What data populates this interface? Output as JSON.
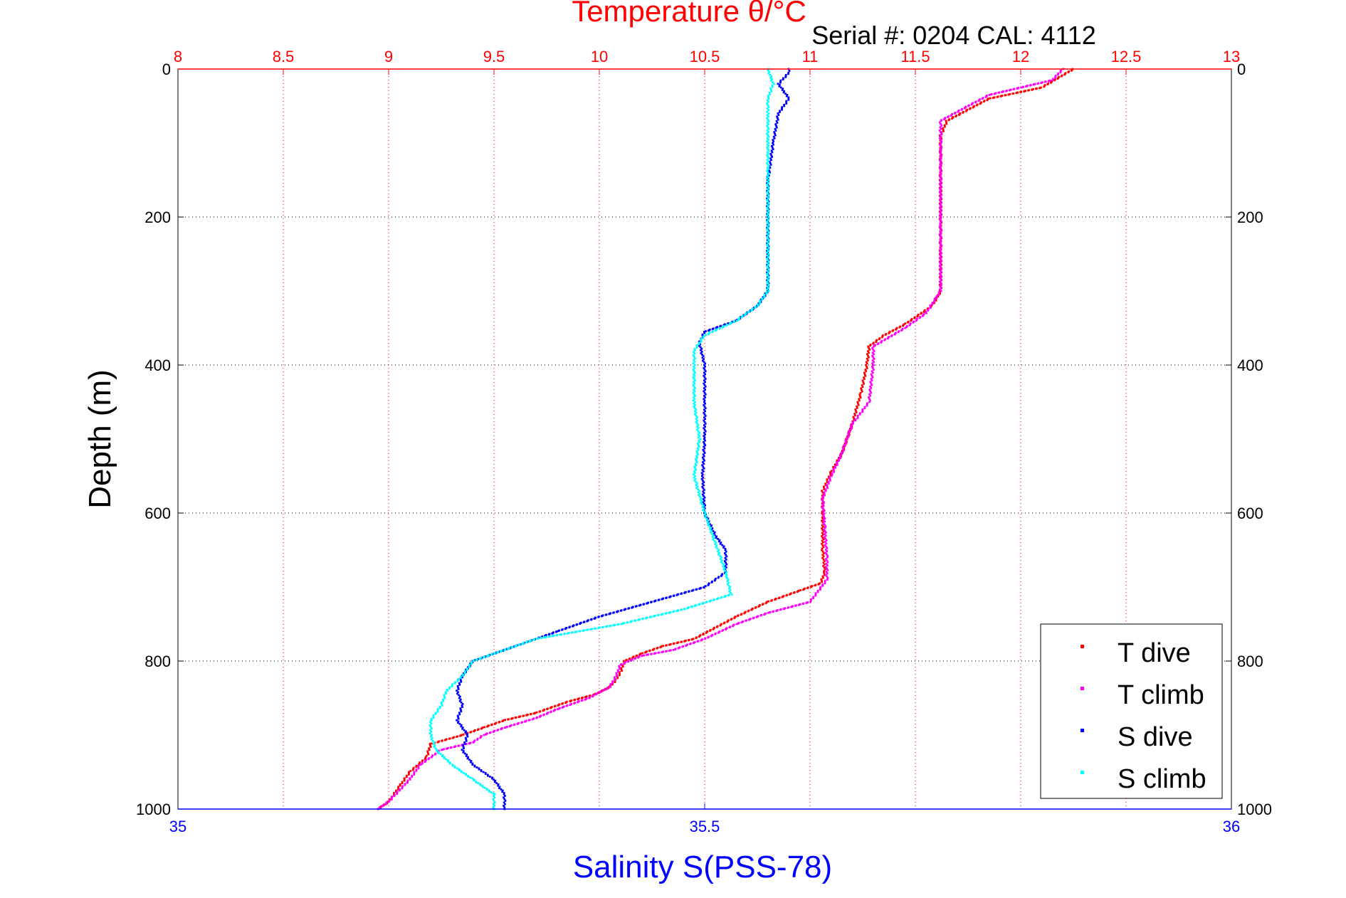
{
  "chart_data": {
    "type": "scatter",
    "title": "Temperature θ/°C",
    "subtitle": "Serial #: 0204  CAL: 4112",
    "ylabel": "Depth (m)",
    "x2label": "Salinity S(PSS-78)",
    "ylim": [
      0,
      1000
    ],
    "y_reversed": true,
    "x_top": {
      "label": "Temperature θ/°C",
      "lim": [
        8,
        13
      ],
      "ticks": [
        "8",
        "8.5",
        "9",
        "9.5",
        "10",
        "10.5",
        "11",
        "11.5",
        "12",
        "12.5",
        "13"
      ]
    },
    "x_bottom": {
      "label": "Salinity S(PSS-78)",
      "lim": [
        35,
        36
      ],
      "ticks": [
        "35",
        "35.5",
        "36"
      ]
    },
    "y_ticks": [
      "0",
      "200",
      "400",
      "600",
      "800",
      "1000"
    ],
    "grid": true,
    "legend_position": "bottom-right",
    "colors": {
      "temp_axis": "#ff0000",
      "sal_axis": "#0000ff",
      "t_dive": "#ff0000",
      "t_climb": "#ff00ff",
      "s_dive": "#0000ff",
      "s_climb": "#00ffff"
    },
    "series": [
      {
        "name": "T dive",
        "axis": "top",
        "points": [
          [
            12.25,
            0
          ],
          [
            12.1,
            25
          ],
          [
            11.85,
            40
          ],
          [
            11.75,
            55
          ],
          [
            11.65,
            70
          ],
          [
            11.62,
            90
          ],
          [
            11.62,
            150
          ],
          [
            11.62,
            250
          ],
          [
            11.62,
            300
          ],
          [
            11.58,
            320
          ],
          [
            11.45,
            345
          ],
          [
            11.35,
            360
          ],
          [
            11.28,
            375
          ],
          [
            11.27,
            400
          ],
          [
            11.24,
            440
          ],
          [
            11.2,
            480
          ],
          [
            11.15,
            520
          ],
          [
            11.1,
            545
          ],
          [
            11.06,
            570
          ],
          [
            11.06,
            600
          ],
          [
            11.06,
            650
          ],
          [
            11.07,
            680
          ],
          [
            11.05,
            695
          ],
          [
            10.95,
            705
          ],
          [
            10.8,
            720
          ],
          [
            10.65,
            740
          ],
          [
            10.55,
            755
          ],
          [
            10.45,
            770
          ],
          [
            10.3,
            780
          ],
          [
            10.2,
            790
          ],
          [
            10.12,
            800
          ],
          [
            10.1,
            815
          ],
          [
            10.08,
            825
          ],
          [
            10.05,
            835
          ],
          [
            9.98,
            845
          ],
          [
            9.85,
            855
          ],
          [
            9.7,
            870
          ],
          [
            9.55,
            880
          ],
          [
            9.45,
            890
          ],
          [
            9.35,
            900
          ],
          [
            9.2,
            912
          ],
          [
            9.18,
            930
          ],
          [
            9.1,
            950
          ],
          [
            9.05,
            970
          ],
          [
            9,
            990
          ],
          [
            8.95,
            1000
          ]
        ]
      },
      {
        "name": "T climb",
        "axis": "top",
        "points": [
          [
            12.2,
            0
          ],
          [
            12.15,
            15
          ],
          [
            12.0,
            25
          ],
          [
            11.85,
            35
          ],
          [
            11.75,
            50
          ],
          [
            11.62,
            70
          ],
          [
            11.62,
            100
          ],
          [
            11.62,
            200
          ],
          [
            11.62,
            300
          ],
          [
            11.55,
            330
          ],
          [
            11.45,
            350
          ],
          [
            11.3,
            375
          ],
          [
            11.3,
            400
          ],
          [
            11.28,
            450
          ],
          [
            11.2,
            480
          ],
          [
            11.15,
            520
          ],
          [
            11.1,
            550
          ],
          [
            11.06,
            580
          ],
          [
            11.07,
            620
          ],
          [
            11.08,
            660
          ],
          [
            11.08,
            690
          ],
          [
            11.0,
            720
          ],
          [
            10.8,
            735
          ],
          [
            10.65,
            750
          ],
          [
            10.5,
            770
          ],
          [
            10.35,
            785
          ],
          [
            10.2,
            793
          ],
          [
            10.1,
            805
          ],
          [
            10.08,
            820
          ],
          [
            10.05,
            835
          ],
          [
            9.95,
            850
          ],
          [
            9.8,
            865
          ],
          [
            9.7,
            877
          ],
          [
            9.55,
            890
          ],
          [
            9.45,
            900
          ],
          [
            9.4,
            910
          ],
          [
            9.25,
            920
          ],
          [
            9.15,
            940
          ],
          [
            9.1,
            960
          ],
          [
            9.05,
            975
          ],
          [
            9.0,
            990
          ],
          [
            8.95,
            1000
          ]
        ]
      },
      {
        "name": "S dive",
        "axis": "bottom",
        "points": [
          [
            35.58,
            0
          ],
          [
            35.58,
            5
          ],
          [
            35.57,
            20
          ],
          [
            35.58,
            40
          ],
          [
            35.57,
            60
          ],
          [
            35.565,
            100
          ],
          [
            35.56,
            150
          ],
          [
            35.56,
            200
          ],
          [
            35.56,
            250
          ],
          [
            35.56,
            300
          ],
          [
            35.55,
            320
          ],
          [
            35.53,
            340
          ],
          [
            35.5,
            355
          ],
          [
            35.495,
            370
          ],
          [
            35.5,
            400
          ],
          [
            35.5,
            450
          ],
          [
            35.5,
            500
          ],
          [
            35.498,
            550
          ],
          [
            35.5,
            600
          ],
          [
            35.51,
            630
          ],
          [
            35.52,
            650
          ],
          [
            35.52,
            680
          ],
          [
            35.5,
            700
          ],
          [
            35.45,
            720
          ],
          [
            35.4,
            740
          ],
          [
            35.36,
            760
          ],
          [
            35.32,
            780
          ],
          [
            35.28,
            800
          ],
          [
            35.27,
            820
          ],
          [
            35.265,
            840
          ],
          [
            35.27,
            860
          ],
          [
            35.265,
            880
          ],
          [
            35.275,
            900
          ],
          [
            35.27,
            920
          ],
          [
            35.28,
            940
          ],
          [
            35.3,
            960
          ],
          [
            35.31,
            980
          ],
          [
            35.31,
            1000
          ]
        ]
      },
      {
        "name": "S climb",
        "axis": "bottom",
        "points": [
          [
            35.56,
            0
          ],
          [
            35.565,
            20
          ],
          [
            35.56,
            40
          ],
          [
            35.56,
            60
          ],
          [
            35.56,
            100
          ],
          [
            35.56,
            150
          ],
          [
            35.56,
            200
          ],
          [
            35.56,
            250
          ],
          [
            35.56,
            300
          ],
          [
            35.55,
            320
          ],
          [
            35.53,
            340
          ],
          [
            35.5,
            360
          ],
          [
            35.49,
            380
          ],
          [
            35.49,
            400
          ],
          [
            35.49,
            450
          ],
          [
            35.495,
            500
          ],
          [
            35.49,
            550
          ],
          [
            35.5,
            600
          ],
          [
            35.51,
            640
          ],
          [
            35.52,
            680
          ],
          [
            35.525,
            710
          ],
          [
            35.48,
            730
          ],
          [
            35.42,
            750
          ],
          [
            35.34,
            770
          ],
          [
            35.3,
            790
          ],
          [
            35.28,
            800
          ],
          [
            35.27,
            820
          ],
          [
            35.255,
            840
          ],
          [
            35.25,
            860
          ],
          [
            35.24,
            880
          ],
          [
            35.24,
            900
          ],
          [
            35.245,
            920
          ],
          [
            35.26,
            940
          ],
          [
            35.28,
            960
          ],
          [
            35.3,
            980
          ],
          [
            35.3,
            1000
          ]
        ]
      }
    ]
  }
}
